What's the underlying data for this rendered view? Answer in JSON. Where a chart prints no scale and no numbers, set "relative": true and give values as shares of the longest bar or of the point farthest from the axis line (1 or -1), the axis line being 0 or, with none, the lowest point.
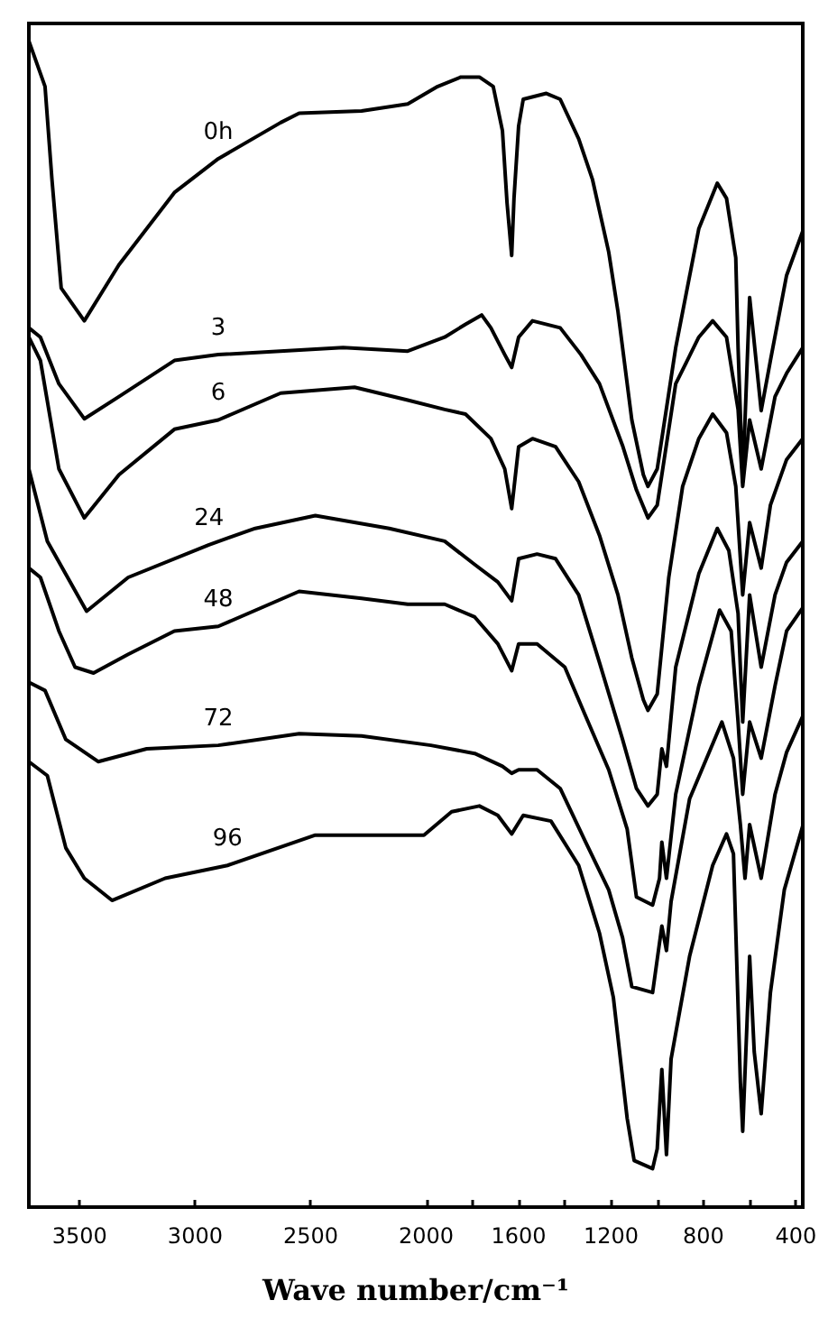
{
  "chart_data": {
    "type": "line",
    "relative": true,
    "xlabel": "Wave number/cm⁻¹",
    "marker": "none",
    "line_style": "solid",
    "xlim": [
      3720,
      370
    ],
    "xticks": [
      3500,
      3000,
      2500,
      2000,
      {
        "value": 1800,
        "label": null
      },
      1600,
      {
        "value": 1400,
        "label": null
      },
      1200,
      {
        "value": 1000,
        "label": null
      },
      800,
      {
        "value": 600,
        "label": null
      },
      400
    ],
    "series": [
      {
        "name": "0h",
        "color": "#000000",
        "x": [
          3720,
          3650,
          3620,
          3580,
          3480,
          3330,
          3090,
          2900,
          2630,
          2550,
          2280,
          2080,
          1950,
          1850,
          1770,
          1710,
          1670,
          1650,
          1630,
          1620,
          1600,
          1580,
          1480,
          1420,
          1340,
          1280,
          1210,
          1170,
          1110,
          1060,
          1040,
          1000,
          920,
          820,
          740,
          700,
          660,
          650,
          630,
          600,
          550,
          510,
          440,
          370
        ],
        "values": [
          1.0,
          0.961,
          0.881,
          0.788,
          0.76,
          0.808,
          0.87,
          0.899,
          0.93,
          0.938,
          0.94,
          0.946,
          0.961,
          0.969,
          0.969,
          0.961,
          0.923,
          0.861,
          0.816,
          0.865,
          0.927,
          0.95,
          0.955,
          0.95,
          0.916,
          0.881,
          0.819,
          0.768,
          0.675,
          0.628,
          0.618,
          0.633,
          0.737,
          0.839,
          0.878,
          0.865,
          0.814,
          0.737,
          0.622,
          0.78,
          0.683,
          0.726,
          0.799,
          0.837
        ]
      },
      {
        "name": "3",
        "color": "#000000",
        "x": [
          3720,
          3670,
          3590,
          3480,
          3330,
          3090,
          2900,
          2360,
          2080,
          1920,
          1830,
          1760,
          1720,
          1660,
          1630,
          1600,
          1540,
          1420,
          1330,
          1250,
          1150,
          1090,
          1040,
          1000,
          920,
          820,
          760,
          700,
          650,
          630,
          600,
          550,
          490,
          440,
          370
        ],
        "values": [
          0.754,
          0.746,
          0.706,
          0.676,
          0.695,
          0.726,
          0.731,
          0.737,
          0.734,
          0.746,
          0.757,
          0.765,
          0.754,
          0.731,
          0.72,
          0.746,
          0.76,
          0.754,
          0.731,
          0.706,
          0.653,
          0.615,
          0.591,
          0.602,
          0.706,
          0.746,
          0.76,
          0.746,
          0.684,
          0.618,
          0.675,
          0.633,
          0.695,
          0.715,
          0.737
        ]
      },
      {
        "name": "6",
        "color": "#000000",
        "x": [
          3720,
          3670,
          3590,
          3480,
          3330,
          3090,
          2900,
          2630,
          2310,
          2080,
          1920,
          1830,
          1720,
          1660,
          1630,
          1600,
          1540,
          1440,
          1340,
          1250,
          1170,
          1110,
          1060,
          1040,
          1000,
          950,
          890,
          820,
          760,
          700,
          660,
          630,
          600,
          550,
          510,
          440,
          370
        ],
        "values": [
          0.746,
          0.726,
          0.633,
          0.591,
          0.628,
          0.667,
          0.675,
          0.698,
          0.703,
          0.692,
          0.684,
          0.68,
          0.659,
          0.633,
          0.599,
          0.652,
          0.659,
          0.652,
          0.622,
          0.576,
          0.525,
          0.471,
          0.435,
          0.426,
          0.44,
          0.54,
          0.618,
          0.659,
          0.68,
          0.664,
          0.618,
          0.525,
          0.587,
          0.548,
          0.602,
          0.641,
          0.659
        ]
      },
      {
        "name": "24",
        "color": "#000000",
        "x": [
          3720,
          3640,
          3470,
          3290,
          2940,
          2740,
          2480,
          2160,
          1920,
          1790,
          1690,
          1630,
          1600,
          1520,
          1440,
          1340,
          1250,
          1150,
          1090,
          1040,
          1000,
          980,
          960,
          920,
          820,
          740,
          690,
          650,
          630,
          600,
          550,
          490,
          440,
          370
        ],
        "values": [
          0.633,
          0.571,
          0.511,
          0.54,
          0.568,
          0.582,
          0.593,
          0.582,
          0.571,
          0.551,
          0.536,
          0.52,
          0.556,
          0.56,
          0.556,
          0.525,
          0.467,
          0.401,
          0.359,
          0.344,
          0.354,
          0.393,
          0.378,
          0.463,
          0.543,
          0.582,
          0.563,
          0.509,
          0.416,
          0.525,
          0.463,
          0.525,
          0.553,
          0.571
        ]
      },
      {
        "name": "48",
        "color": "#000000",
        "x": [
          3720,
          3670,
          3590,
          3520,
          3440,
          3290,
          3090,
          2900,
          2550,
          2280,
          2080,
          1920,
          1790,
          1690,
          1630,
          1600,
          1520,
          1400,
          1310,
          1210,
          1130,
          1090,
          1020,
          990,
          980,
          960,
          920,
          820,
          730,
          680,
          650,
          630,
          600,
          550,
          490,
          440,
          370
        ],
        "values": [
          0.548,
          0.54,
          0.494,
          0.463,
          0.458,
          0.474,
          0.494,
          0.498,
          0.528,
          0.522,
          0.517,
          0.517,
          0.506,
          0.483,
          0.46,
          0.483,
          0.483,
          0.463,
          0.421,
          0.375,
          0.324,
          0.266,
          0.259,
          0.282,
          0.313,
          0.282,
          0.354,
          0.447,
          0.512,
          0.494,
          0.416,
          0.354,
          0.416,
          0.385,
          0.447,
          0.494,
          0.514
        ]
      },
      {
        "name": "72",
        "color": "#000000",
        "x": [
          3720,
          3650,
          3560,
          3420,
          3210,
          2900,
          2550,
          2280,
          1980,
          1790,
          1670,
          1630,
          1600,
          1520,
          1420,
          1310,
          1210,
          1150,
          1110,
          1020,
          980,
          960,
          940,
          860,
          720,
          670,
          640,
          620,
          600,
          550,
          490,
          440,
          370
        ],
        "values": [
          0.45,
          0.443,
          0.401,
          0.382,
          0.393,
          0.396,
          0.406,
          0.404,
          0.396,
          0.389,
          0.378,
          0.372,
          0.375,
          0.375,
          0.359,
          0.313,
          0.272,
          0.231,
          0.189,
          0.184,
          0.241,
          0.22,
          0.262,
          0.35,
          0.416,
          0.385,
          0.328,
          0.282,
          0.328,
          0.282,
          0.354,
          0.39,
          0.421
        ]
      },
      {
        "name": "96",
        "color": "#000000",
        "x": [
          3720,
          3640,
          3560,
          3480,
          3360,
          3130,
          2860,
          2480,
          2010,
          1890,
          1770,
          1690,
          1630,
          1580,
          1460,
          1340,
          1250,
          1190,
          1130,
          1100,
          1020,
          1000,
          980,
          960,
          940,
          860,
          760,
          700,
          670,
          640,
          630,
          600,
          580,
          550,
          510,
          450,
          370
        ],
        "values": [
          0.382,
          0.37,
          0.308,
          0.282,
          0.263,
          0.282,
          0.293,
          0.319,
          0.319,
          0.339,
          0.344,
          0.336,
          0.32,
          0.336,
          0.331,
          0.293,
          0.235,
          0.18,
          0.076,
          0.04,
          0.033,
          0.05,
          0.118,
          0.045,
          0.127,
          0.215,
          0.293,
          0.32,
          0.303,
          0.107,
          0.065,
          0.215,
          0.133,
          0.08,
          0.184,
          0.272,
          0.327
        ]
      }
    ]
  }
}
